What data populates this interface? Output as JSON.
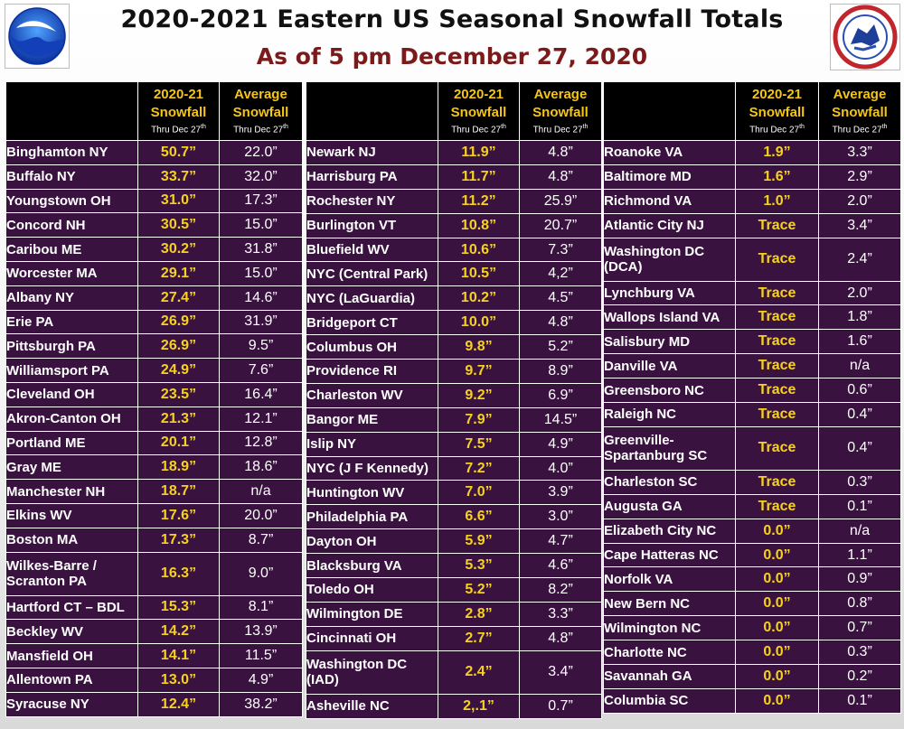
{
  "title": "2020-2021 Eastern US Seasonal Snowfall Totals",
  "subtitle": "As of 5 pm December 27, 2020",
  "colors": {
    "table_bg": "#3a1240",
    "header_bg": "#000000",
    "snowfall_text": "#f5d21e",
    "subtitle": "#7a1a1a"
  },
  "icons": {
    "left_logo": "noaa-logo",
    "right_logo": "national-weather-service-logo"
  },
  "header": {
    "snow_line1": "2020-21",
    "snow_line2": "Snowfall",
    "snow_line3": "Thru Dec 27",
    "avg_line1": "Average",
    "avg_line2": "Snowfall",
    "avg_line3": "Thru Dec 27",
    "sup": "th"
  },
  "tables": [
    {
      "rows": [
        {
          "city": "Binghamton NY",
          "snow": "50.7”",
          "avg": "22.0”"
        },
        {
          "city": "Buffalo NY",
          "snow": "33.7”",
          "avg": "32.0”"
        },
        {
          "city": "Youngstown OH",
          "snow": "31.0”",
          "avg": "17.3”"
        },
        {
          "city": "Concord NH",
          "snow": "30.5”",
          "avg": "15.0”"
        },
        {
          "city": "Caribou ME",
          "snow": "30.2”",
          "avg": "31.8”"
        },
        {
          "city": "Worcester MA",
          "snow": "29.1”",
          "avg": "15.0”"
        },
        {
          "city": "Albany NY",
          "snow": "27.4”",
          "avg": "14.6”"
        },
        {
          "city": "Erie PA",
          "snow": "26.9”",
          "avg": "31.9”"
        },
        {
          "city": "Pittsburgh PA",
          "snow": "26.9”",
          "avg": "9.5”"
        },
        {
          "city": "Williamsport PA",
          "snow": "24.9”",
          "avg": "7.6”"
        },
        {
          "city": "Cleveland OH",
          "snow": "23.5”",
          "avg": "16.4”"
        },
        {
          "city": "Akron-Canton OH",
          "snow": "21.3”",
          "avg": "12.1”"
        },
        {
          "city": "Portland ME",
          "snow": "20.1”",
          "avg": "12.8”"
        },
        {
          "city": "Gray ME",
          "snow": "18.9”",
          "avg": "18.6”"
        },
        {
          "city": "Manchester NH",
          "snow": "18.7”",
          "avg": "n/a"
        },
        {
          "city": "Elkins WV",
          "snow": "17.6”",
          "avg": "20.0”"
        },
        {
          "city": "Boston MA",
          "snow": "17.3”",
          "avg": "8.7”"
        },
        {
          "city": "Wilkes-Barre / Scranton PA",
          "snow": "16.3”",
          "avg": "9.0”",
          "tall": true
        },
        {
          "city": "Hartford CT – BDL",
          "snow": "15.3”",
          "avg": "8.1”"
        },
        {
          "city": "Beckley WV",
          "snow": "14.2”",
          "avg": "13.9”"
        },
        {
          "city": "Mansfield OH",
          "snow": "14.1”",
          "avg": "11.5”"
        },
        {
          "city": "Allentown PA",
          "snow": "13.0”",
          "avg": "4.9”"
        },
        {
          "city": "Syracuse NY",
          "snow": "12.4”",
          "avg": "38.2”"
        }
      ]
    },
    {
      "rows": [
        {
          "city": "Newark NJ",
          "snow": "11.9”",
          "avg": "4.8”"
        },
        {
          "city": "Harrisburg PA",
          "snow": "11.7”",
          "avg": "4.8”"
        },
        {
          "city": "Rochester NY",
          "snow": "11.2”",
          "avg": "25.9”"
        },
        {
          "city": "Burlington VT",
          "snow": "10.8”",
          "avg": "20.7”"
        },
        {
          "city": "Bluefield WV",
          "snow": "10.6”",
          "avg": "7.3”"
        },
        {
          "city": "NYC (Central Park)",
          "snow": "10.5”",
          "avg": "4,2”"
        },
        {
          "city": "NYC (LaGuardia)",
          "snow": "10.2”",
          "avg": "4.5”"
        },
        {
          "city": "Bridgeport CT",
          "snow": "10.0”",
          "avg": "4.8”"
        },
        {
          "city": "Columbus OH",
          "snow": "9.8”",
          "avg": "5.2”"
        },
        {
          "city": "Providence RI",
          "snow": "9.7”",
          "avg": "8.9”"
        },
        {
          "city": "Charleston WV",
          "snow": "9.2”",
          "avg": "6.9”"
        },
        {
          "city": "Bangor ME",
          "snow": "7.9”",
          "avg": "14.5”"
        },
        {
          "city": "Islip NY",
          "snow": "7.5”",
          "avg": "4.9”"
        },
        {
          "city": "NYC (J F Kennedy)",
          "snow": "7.2”",
          "avg": "4.0”"
        },
        {
          "city": "Huntington WV",
          "snow": "7.0”",
          "avg": "3.9”"
        },
        {
          "city": "Philadelphia PA",
          "snow": "6.6”",
          "avg": "3.0”"
        },
        {
          "city": "Dayton OH",
          "snow": "5.9”",
          "avg": "4.7”"
        },
        {
          "city": "Blacksburg VA",
          "snow": "5.3”",
          "avg": "4.6”"
        },
        {
          "city": "Toledo OH",
          "snow": "5.2”",
          "avg": "8.2”"
        },
        {
          "city": "Wilmington DE",
          "snow": "2.8”",
          "avg": "3.3”"
        },
        {
          "city": "Cincinnati OH",
          "snow": "2.7”",
          "avg": "4.8”"
        },
        {
          "city": "Washington DC (IAD)",
          "snow": "2.4”",
          "avg": "3.4”",
          "tall": true
        },
        {
          "city": "Asheville NC",
          "snow": "2,.1”",
          "avg": "0.7”"
        }
      ]
    },
    {
      "rows": [
        {
          "city": "Roanoke VA",
          "snow": "1.9”",
          "avg": "3.3”"
        },
        {
          "city": "Baltimore MD",
          "snow": "1.6”",
          "avg": "2.9”"
        },
        {
          "city": "Richmond VA",
          "snow": "1.0”",
          "avg": "2.0”"
        },
        {
          "city": "Atlantic City NJ",
          "snow": "Trace",
          "avg": "3.4”"
        },
        {
          "city": "Washington DC (DCA)",
          "snow": "Trace",
          "avg": "2.4”",
          "tall": true
        },
        {
          "city": "Lynchburg VA",
          "snow": "Trace",
          "avg": "2.0”"
        },
        {
          "city": "Wallops Island VA",
          "snow": "Trace",
          "avg": "1.8”"
        },
        {
          "city": "Salisbury MD",
          "snow": "Trace",
          "avg": "1.6”"
        },
        {
          "city": "Danville VA",
          "snow": "Trace",
          "avg": "n/a"
        },
        {
          "city": "Greensboro NC",
          "snow": "Trace",
          "avg": "0.6”"
        },
        {
          "city": "Raleigh NC",
          "snow": "Trace",
          "avg": "0.4”"
        },
        {
          "city": "Greenville-Spartanburg SC",
          "snow": "Trace",
          "avg": "0.4”",
          "tall": true
        },
        {
          "city": "Charleston SC",
          "snow": "Trace",
          "avg": "0.3”"
        },
        {
          "city": "Augusta GA",
          "snow": "Trace",
          "avg": "0.1”"
        },
        {
          "city": "Elizabeth City NC",
          "snow": "0.0”",
          "avg": "n/a"
        },
        {
          "city": "Cape Hatteras NC",
          "snow": "0.0”",
          "avg": "1.1”"
        },
        {
          "city": "Norfolk VA",
          "snow": "0.0”",
          "avg": "0.9”"
        },
        {
          "city": "New Bern NC",
          "snow": "0.0”",
          "avg": "0.8”"
        },
        {
          "city": "Wilmington NC",
          "snow": "0.0”",
          "avg": "0.7”"
        },
        {
          "city": "Charlotte NC",
          "snow": "0.0”",
          "avg": "0.3”"
        },
        {
          "city": "Savannah GA",
          "snow": "0.0”",
          "avg": "0.2”"
        },
        {
          "city": "Columbia SC",
          "snow": "0.0”",
          "avg": "0.1”"
        }
      ]
    }
  ]
}
